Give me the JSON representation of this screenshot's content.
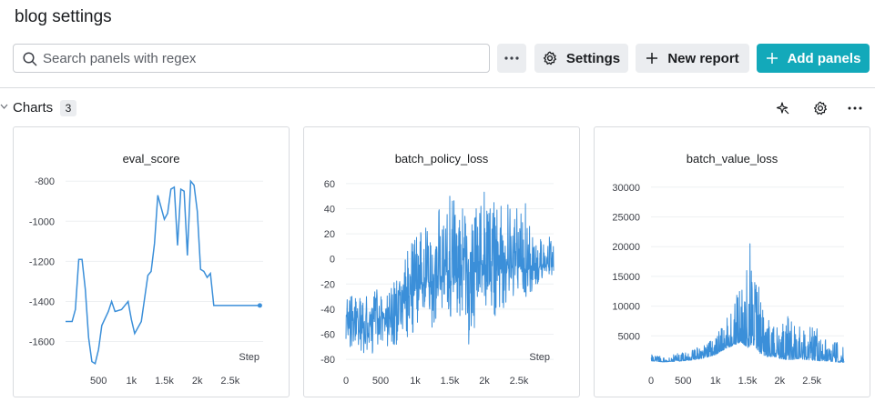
{
  "page": {
    "title": "blog settings"
  },
  "toolbar": {
    "search_placeholder": "Search panels with regex",
    "more_icon": "ellipsis-icon",
    "settings_label": "Settings",
    "new_report_label": "New report",
    "add_panels_label": "Add panels",
    "accent_color": "#13a9ba"
  },
  "section": {
    "title": "Charts",
    "count": "3",
    "icons": [
      "sparkle-icon",
      "gear-icon",
      "ellipsis-icon"
    ]
  },
  "chart_data": [
    {
      "type": "line",
      "title": "eval_score",
      "xlabel": "Step",
      "xlim": [
        0,
        3000
      ],
      "ylim": [
        -1720,
        -740
      ],
      "x_ticks": [
        500,
        1000,
        1500,
        2000,
        2500
      ],
      "x_tick_labels": [
        "500",
        "1k",
        "1.5k",
        "2k",
        "2.5k"
      ],
      "y_ticks": [
        -1600,
        -1400,
        -1200,
        -1000,
        -800
      ],
      "y_tick_labels": [
        "-1600",
        "-1400",
        "-1200",
        "-1000",
        "-800"
      ],
      "color": "#3b8fd9",
      "series": [
        {
          "x": [
            0,
            100,
            150,
            200,
            250,
            300,
            350,
            400,
            450,
            500,
            550,
            650,
            700,
            750,
            850,
            950,
            1000,
            1050,
            1150,
            1250,
            1300,
            1350,
            1400,
            1500,
            1550,
            1600,
            1650,
            1700,
            1750,
            1800,
            1850,
            1900,
            1950,
            2000,
            2050,
            2100,
            2150,
            2200,
            2250,
            2300,
            2350,
            2400,
            2450,
            2600,
            2700,
            2800,
            2850,
            2900,
            2950
          ],
          "y": [
            -1500,
            -1500,
            -1440,
            -1190,
            -1190,
            -1340,
            -1580,
            -1700,
            -1710,
            -1640,
            -1520,
            -1450,
            -1400,
            -1450,
            -1440,
            -1400,
            -1490,
            -1560,
            -1500,
            -1270,
            -1250,
            -1110,
            -870,
            -990,
            -960,
            -840,
            -830,
            -1120,
            -840,
            -850,
            -1170,
            -800,
            -820,
            -950,
            -1240,
            -1250,
            -1280,
            -1260,
            -1420,
            -1420,
            -1420,
            -1420,
            -1420,
            -1420,
            -1420,
            -1420,
            -1420,
            -1420,
            -1420
          ]
        }
      ]
    },
    {
      "type": "line",
      "title": "batch_policy_loss",
      "xlabel": "Step",
      "xlim": [
        0,
        3000
      ],
      "ylim": [
        -85,
        65
      ],
      "x_ticks": [
        0,
        500,
        1000,
        1500,
        2000,
        2500
      ],
      "x_tick_labels": [
        "0",
        "500",
        "1k",
        "1.5k",
        "2k",
        "2.5k"
      ],
      "y_ticks": [
        -80,
        -60,
        -40,
        -20,
        0,
        20,
        40,
        60
      ],
      "y_tick_labels": [
        "-80",
        "-60",
        "-40",
        "-20",
        "0",
        "20",
        "40",
        "60"
      ],
      "color": "#3b8fd9",
      "series": [
        {
          "x": [
            0,
            100,
            200,
            300,
            400,
            500,
            600,
            700,
            800,
            900,
            1000,
            1100,
            1200,
            1300,
            1400,
            1500,
            1600,
            1700,
            1800,
            1900,
            2000,
            2100,
            2200,
            2300,
            2400,
            2500,
            2600,
            2700,
            2800,
            2900,
            3000
          ],
          "y_mid": [
            -45,
            -48,
            -50,
            -52,
            -48,
            -50,
            -45,
            -46,
            -40,
            -30,
            -25,
            -22,
            -20,
            -15,
            -12,
            -10,
            -8,
            -5,
            -10,
            -2,
            -5,
            0,
            -8,
            -4,
            -6,
            -5,
            -8,
            -8,
            -6,
            -5,
            -6
          ],
          "y_high": [
            -20,
            -25,
            -25,
            -25,
            -20,
            -20,
            -15,
            -10,
            -5,
            10,
            20,
            25,
            30,
            35,
            45,
            58,
            40,
            50,
            30,
            45,
            55,
            50,
            40,
            45,
            45,
            40,
            45,
            20,
            15,
            25,
            10
          ],
          "y_low": [
            -70,
            -72,
            -75,
            -78,
            -75,
            -78,
            -72,
            -72,
            -65,
            -65,
            -55,
            -50,
            -55,
            -58,
            -45,
            -50,
            -45,
            -50,
            -78,
            -40,
            -45,
            -40,
            -50,
            -38,
            -45,
            -30,
            -35,
            -25,
            -20,
            -15,
            -12
          ]
        }
      ]
    },
    {
      "type": "line",
      "title": "batch_value_loss",
      "xlabel": "",
      "xlim": [
        0,
        3000
      ],
      "ylim": [
        0,
        31500
      ],
      "x_ticks": [
        0,
        500,
        1000,
        1500,
        2000,
        2500
      ],
      "x_tick_labels": [
        "0",
        "500",
        "1k",
        "1.5k",
        "2k",
        "2.5k"
      ],
      "y_ticks": [
        5000,
        10000,
        15000,
        20000,
        25000,
        30000
      ],
      "y_tick_labels": [
        "5000",
        "10000",
        "15000",
        "20000",
        "25000",
        "30000"
      ],
      "color": "#3b8fd9",
      "series": [
        {
          "x": [
            0,
            100,
            200,
            300,
            400,
            500,
            600,
            700,
            800,
            900,
            1000,
            1100,
            1200,
            1300,
            1400,
            1500,
            1600,
            1700,
            1800,
            1900,
            2000,
            2100,
            2200,
            2300,
            2400,
            2500,
            2600,
            2700,
            2800,
            2900,
            3000
          ],
          "y_low": [
            800,
            700,
            600,
            700,
            700,
            800,
            900,
            1000,
            1200,
            1500,
            1800,
            2500,
            3000,
            3500,
            4000,
            3000,
            3500,
            2000,
            1500,
            1500,
            1200,
            1000,
            1000,
            1200,
            1000,
            900,
            800,
            800,
            700,
            600,
            500
          ],
          "y_high": [
            2000,
            1800,
            1600,
            1800,
            2000,
            2200,
            2500,
            3000,
            3500,
            4000,
            5000,
            7000,
            10000,
            12000,
            15000,
            24000,
            17000,
            12000,
            9000,
            8000,
            7000,
            9000,
            8000,
            7000,
            6000,
            7000,
            6000,
            5000,
            5000,
            4000,
            3000
          ]
        }
      ]
    }
  ]
}
